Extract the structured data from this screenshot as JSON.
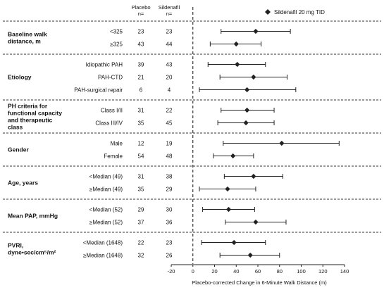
{
  "chart_data": {
    "type": "forest",
    "legend": {
      "label": "Sildenafil 20 mg TID",
      "placement": "top-right",
      "marker": "diamond"
    },
    "column_headers": [
      {
        "line1": "Placebo",
        "line2": "n="
      },
      {
        "line1": "Sildenafil",
        "line2": "n="
      }
    ],
    "xlabel": "Placebo-corrected Change in 6-Minute Walk Distance (m)",
    "xlim": [
      -20,
      140
    ],
    "xticks": [
      "-20",
      "0",
      "20",
      "40",
      "60",
      "80",
      "100",
      "120",
      "140"
    ],
    "reference_line": 0,
    "groups": [
      {
        "label": "Baseline walk distance, m",
        "rows": [
          {
            "label": "<325",
            "placebo_n": "23",
            "sildenafil_n": "23",
            "estimate": 58,
            "lower": 26,
            "upper": 90
          },
          {
            "label": "≥325",
            "placebo_n": "43",
            "sildenafil_n": "44",
            "estimate": 40,
            "lower": 16,
            "upper": 63
          }
        ]
      },
      {
        "label": "Etiology",
        "rows": [
          {
            "label": "Idiopathic PAH",
            "placebo_n": "39",
            "sildenafil_n": "43",
            "estimate": 41,
            "lower": 14,
            "upper": 67
          },
          {
            "label": "PAH-CTD",
            "placebo_n": "21",
            "sildenafil_n": "20",
            "estimate": 56,
            "lower": 25,
            "upper": 87
          },
          {
            "label": "PAH-surgical repair",
            "placebo_n": "6",
            "sildenafil_n": "4",
            "estimate": 50,
            "lower": 6,
            "upper": 95
          }
        ]
      },
      {
        "label": "PH criteria for functional capacity and therapeutic class",
        "rows": [
          {
            "label": "Class I/II",
            "placebo_n": "31",
            "sildenafil_n": "22",
            "estimate": 50,
            "lower": 26,
            "upper": 75
          },
          {
            "label": "Class III/IV",
            "placebo_n": "35",
            "sildenafil_n": "45",
            "estimate": 49,
            "lower": 23,
            "upper": 75
          }
        ]
      },
      {
        "label": "Gender",
        "rows": [
          {
            "label": "Male",
            "placebo_n": "12",
            "sildenafil_n": "19",
            "estimate": 82,
            "lower": 28,
            "upper": 135
          },
          {
            "label": "Female",
            "placebo_n": "54",
            "sildenafil_n": "48",
            "estimate": 37,
            "lower": 19,
            "upper": 56
          }
        ]
      },
      {
        "label": "Age, years",
        "rows": [
          {
            "label": "<Median (49)",
            "placebo_n": "31",
            "sildenafil_n": "38",
            "estimate": 56,
            "lower": 29,
            "upper": 83
          },
          {
            "label": "≥Median (49)",
            "placebo_n": "35",
            "sildenafil_n": "29",
            "estimate": 32,
            "lower": 6,
            "upper": 58
          }
        ]
      },
      {
        "label": "Mean PAP, mmHg",
        "rows": [
          {
            "label": "<Median (52)",
            "placebo_n": "29",
            "sildenafil_n": "30",
            "estimate": 33,
            "lower": 9,
            "upper": 57
          },
          {
            "label": "≥Median (52)",
            "placebo_n": "37",
            "sildenafil_n": "36",
            "estimate": 58,
            "lower": 30,
            "upper": 86
          }
        ]
      },
      {
        "label": "PVRI, dyne•sec/cm⁵/m²",
        "rows": [
          {
            "label": "<Median (1648)",
            "placebo_n": "22",
            "sildenafil_n": "23",
            "estimate": 38,
            "lower": 8,
            "upper": 67
          },
          {
            "label": "≥Median (1648)",
            "placebo_n": "32",
            "sildenafil_n": "26",
            "estimate": 53,
            "lower": 25,
            "upper": 80
          }
        ]
      }
    ]
  }
}
